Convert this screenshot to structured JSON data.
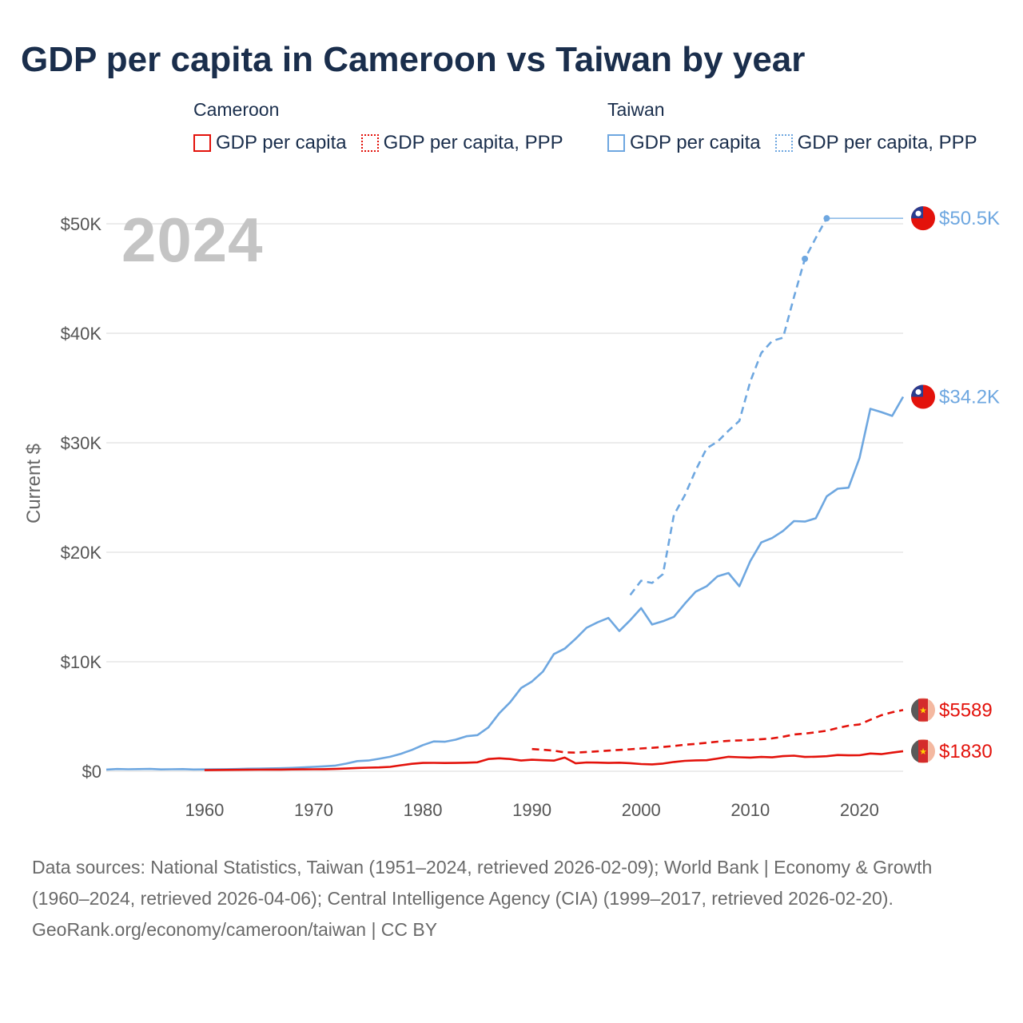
{
  "title": "GDP per capita in Cameroon vs Taiwan by year",
  "legend": {
    "groups": [
      {
        "title": "Cameroon",
        "items": [
          {
            "label": "GDP per capita",
            "style": "solid",
            "color": "#e3120b"
          },
          {
            "label": "GDP per capita, PPP",
            "style": "dotted",
            "color": "#e3120b"
          }
        ]
      },
      {
        "title": "Taiwan",
        "items": [
          {
            "label": "GDP per capita",
            "style": "solid",
            "color": "#6ea7e0"
          },
          {
            "label": "GDP per capita, PPP",
            "style": "dotted",
            "color": "#6ea7e0"
          }
        ]
      }
    ]
  },
  "year_label": "2024",
  "chart_data": {
    "type": "line",
    "title": "GDP per capita in Cameroon vs Taiwan by year",
    "xlabel": "",
    "ylabel": "Current $",
    "xlim": [
      1951,
      2024
    ],
    "ylim": [
      0,
      50500
    ],
    "x_ticks": [
      1960,
      1970,
      1980,
      1990,
      2000,
      2010,
      2020
    ],
    "y_ticks": [
      {
        "value": 0,
        "label": "$0"
      },
      {
        "value": 10000,
        "label": "$10K"
      },
      {
        "value": 20000,
        "label": "$20K"
      },
      {
        "value": 30000,
        "label": "$30K"
      },
      {
        "value": 40000,
        "label": "$40K"
      },
      {
        "value": 50000,
        "label": "$50K"
      }
    ],
    "grid": true,
    "series": [
      {
        "name": "Taiwan GDP per capita",
        "country": "Taiwan",
        "style": "solid",
        "color": "#6ea7e0",
        "end_label": "$34.2K",
        "x": [
          1951,
          1952,
          1953,
          1954,
          1955,
          1956,
          1957,
          1958,
          1959,
          1960,
          1961,
          1962,
          1963,
          1964,
          1965,
          1966,
          1967,
          1968,
          1969,
          1970,
          1971,
          1972,
          1973,
          1974,
          1975,
          1976,
          1977,
          1978,
          1979,
          1980,
          1981,
          1982,
          1983,
          1984,
          1985,
          1986,
          1987,
          1988,
          1989,
          1990,
          1991,
          1992,
          1993,
          1994,
          1995,
          1996,
          1997,
          1998,
          1999,
          2000,
          2001,
          2002,
          2003,
          2004,
          2005,
          2006,
          2007,
          2008,
          2009,
          2010,
          2011,
          2012,
          2013,
          2014,
          2015,
          2016,
          2017,
          2018,
          2019,
          2020,
          2021,
          2022,
          2023,
          2024
        ],
        "y": [
          154,
          205,
          180,
          196,
          210,
          170,
          185,
          200,
          160,
          170,
          180,
          190,
          205,
          230,
          240,
          260,
          280,
          310,
          350,
          400,
          450,
          520,
          700,
          930,
          980,
          1140,
          1320,
          1600,
          1950,
          2390,
          2720,
          2690,
          2880,
          3200,
          3300,
          4000,
          5300,
          6300,
          7600,
          8200,
          9100,
          10700,
          11200,
          12100,
          13100,
          13600,
          14000,
          12800,
          13800,
          14900,
          13400,
          13700,
          14100,
          15300,
          16400,
          16900,
          17800,
          18100,
          16900,
          19200,
          20900,
          21300,
          21950,
          22850,
          22800,
          23100,
          25100,
          25800,
          25900,
          28600,
          33100,
          32800,
          32450,
          34200
        ]
      },
      {
        "name": "Taiwan GDP per capita, PPP",
        "country": "Taiwan",
        "style": "dashed",
        "color": "#6ea7e0",
        "end_label": "$50.5K",
        "x": [
          1999,
          2000,
          2001,
          2002,
          2003,
          2004,
          2005,
          2006,
          2007,
          2008,
          2009,
          2010,
          2011,
          2012,
          2013,
          2014,
          2015,
          2016,
          2017
        ],
        "y": [
          16100,
          17400,
          17200,
          18000,
          23400,
          25200,
          27500,
          29500,
          30100,
          31100,
          32000,
          35600,
          38200,
          39300,
          39600,
          43300,
          46800,
          48700,
          50500
        ],
        "markers_at": [
          2015,
          2017
        ],
        "carried_to": 2024
      },
      {
        "name": "Cameroon GDP per capita",
        "country": "Cameroon",
        "style": "solid",
        "color": "#e3120b",
        "end_label": "$1830",
        "x": [
          1960,
          1961,
          1962,
          1963,
          1964,
          1965,
          1966,
          1967,
          1968,
          1969,
          1970,
          1971,
          1972,
          1973,
          1974,
          1975,
          1976,
          1977,
          1978,
          1979,
          1980,
          1981,
          1982,
          1983,
          1984,
          1985,
          1986,
          1987,
          1988,
          1989,
          1990,
          1991,
          1992,
          1993,
          1994,
          1995,
          1996,
          1997,
          1998,
          1999,
          2000,
          2001,
          2002,
          2003,
          2004,
          2005,
          2006,
          2007,
          2008,
          2009,
          2010,
          2011,
          2012,
          2013,
          2014,
          2015,
          2016,
          2017,
          2018,
          2019,
          2020,
          2021,
          2022,
          2023,
          2024
        ],
        "y": [
          105,
          115,
          125,
          130,
          140,
          145,
          150,
          155,
          165,
          175,
          180,
          190,
          210,
          250,
          300,
          330,
          350,
          400,
          550,
          680,
          760,
          770,
          750,
          760,
          780,
          820,
          1120,
          1180,
          1120,
          980,
          1050,
          1010,
          970,
          1250,
          720,
          800,
          790,
          760,
          780,
          740,
          660,
          630,
          700,
          850,
          950,
          990,
          1010,
          1160,
          1320,
          1280,
          1250,
          1310,
          1270,
          1380,
          1420,
          1310,
          1330,
          1370,
          1480,
          1450,
          1460,
          1620,
          1560,
          1700,
          1830
        ]
      },
      {
        "name": "Cameroon GDP per capita, PPP",
        "country": "Cameroon",
        "style": "dashed",
        "color": "#e3120b",
        "end_label": "$5589",
        "x": [
          1990,
          1991,
          1992,
          1993,
          1994,
          1995,
          1996,
          1997,
          1998,
          1999,
          2000,
          2001,
          2002,
          2003,
          2004,
          2005,
          2006,
          2007,
          2008,
          2009,
          2010,
          2011,
          2012,
          2013,
          2014,
          2015,
          2016,
          2017,
          2018,
          2019,
          2020,
          2021,
          2022,
          2023,
          2024
        ],
        "y": [
          2030,
          1960,
          1880,
          1720,
          1700,
          1760,
          1820,
          1880,
          1950,
          2010,
          2080,
          2140,
          2220,
          2310,
          2420,
          2500,
          2600,
          2700,
          2780,
          2820,
          2860,
          2930,
          3000,
          3150,
          3360,
          3440,
          3560,
          3700,
          3950,
          4160,
          4280,
          4700,
          5120,
          5390,
          5589
        ]
      }
    ]
  },
  "footer": {
    "sources": "Data sources: National Statistics, Taiwan (1951–2024, retrieved 2026-02-09); World Bank | Economy & Growth (1960–2024, retrieved 2026-04-06); Central Intelligence Agency (CIA) (1999–2017, retrieved 2026-02-20).",
    "credit": "GeoRank.org/economy/cameroon/taiwan | CC BY"
  }
}
